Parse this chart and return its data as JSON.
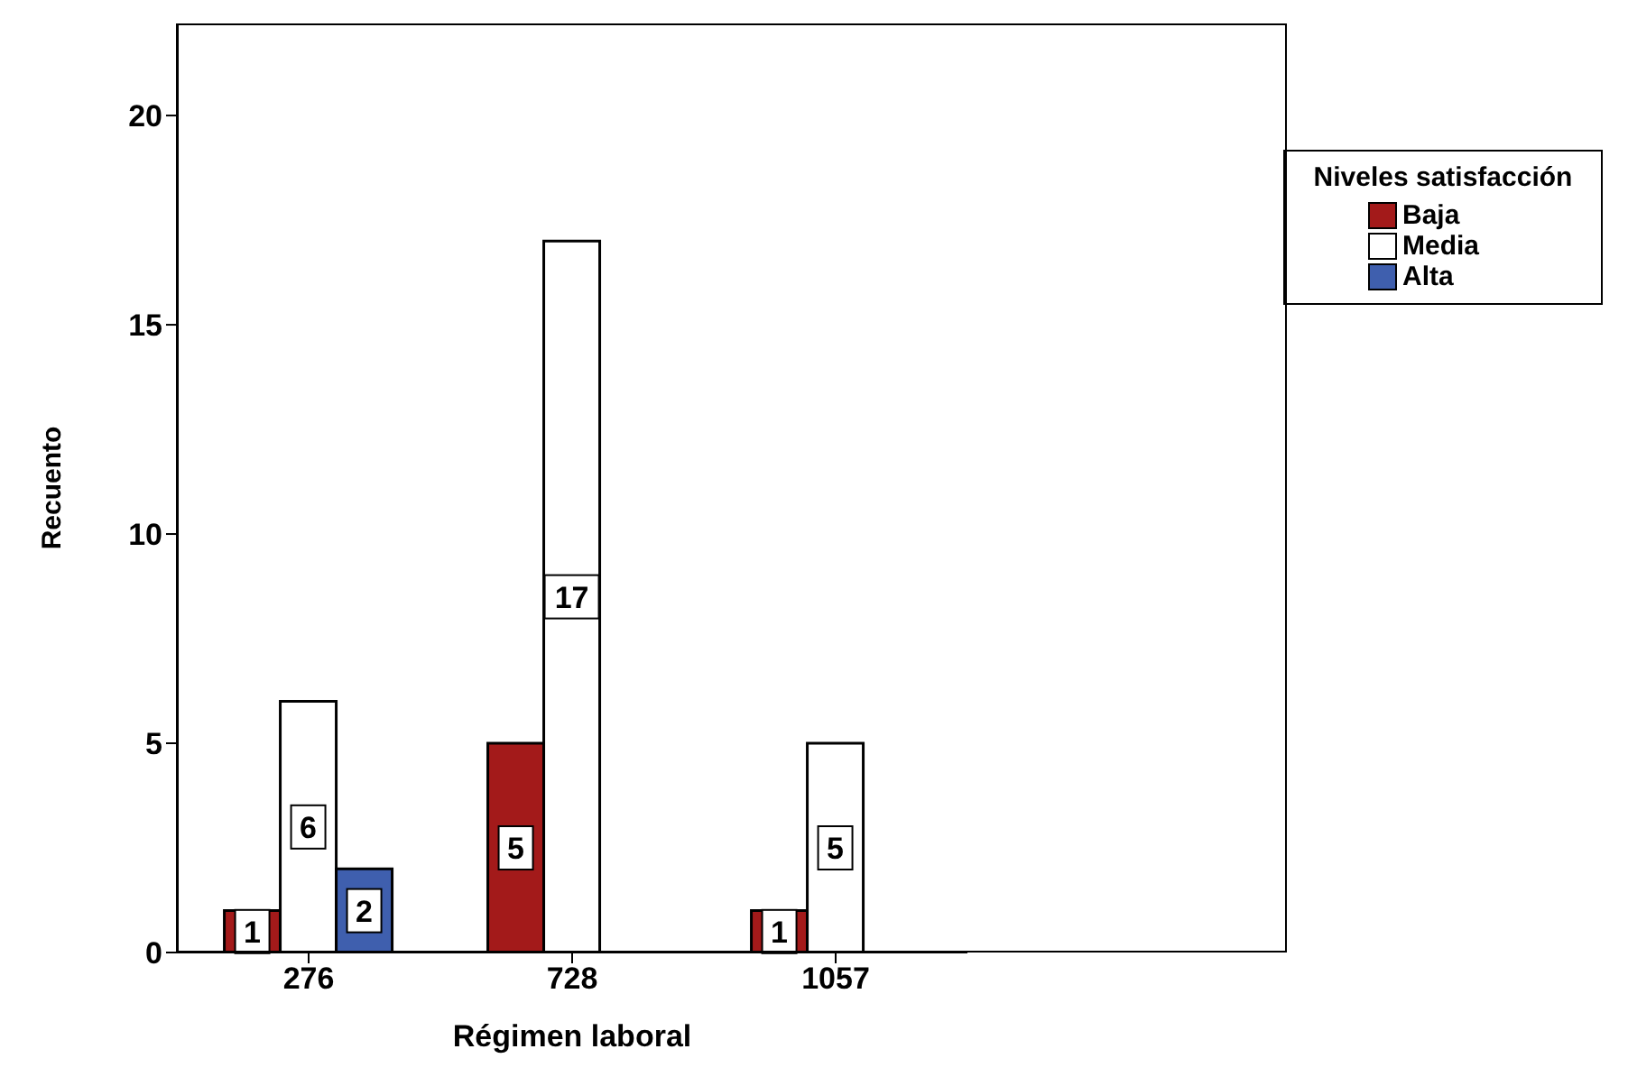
{
  "chart_data": {
    "type": "bar",
    "xlabel": "Régimen laboral",
    "ylabel": "Recuento",
    "legend_title": "Niveles satisfacción",
    "categories": [
      "276",
      "728",
      "1057"
    ],
    "series": [
      {
        "name": "Baja",
        "color": "#a31a1a",
        "values": [
          1,
          5,
          1
        ]
      },
      {
        "name": "Media",
        "color": "#ffffff",
        "values": [
          6,
          17,
          5
        ]
      },
      {
        "name": "Alta",
        "color": "#3f5fae",
        "values": [
          2,
          null,
          null
        ]
      }
    ],
    "ylim": [
      0,
      22.2
    ],
    "yticks": [
      0,
      5,
      10,
      15,
      20
    ],
    "grid": false,
    "legend": "top right",
    "data_labels": true
  }
}
